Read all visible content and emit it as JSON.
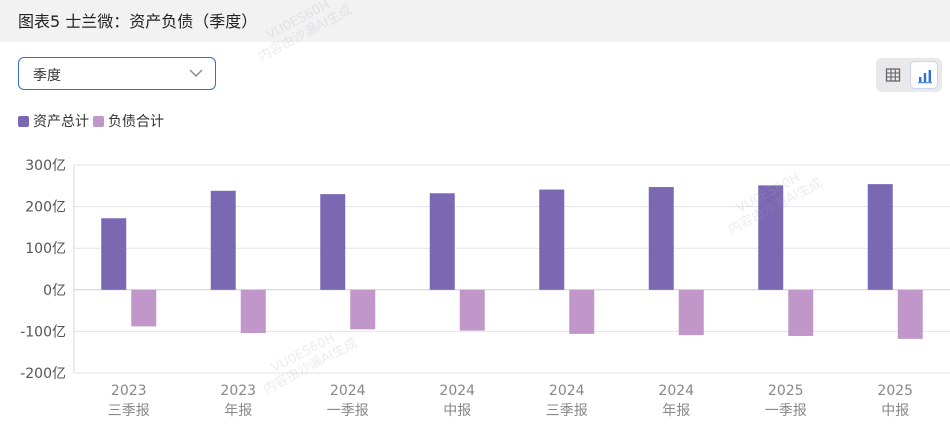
{
  "header": {
    "title": "图表5 士兰微：资产负债（季度）"
  },
  "period_select": {
    "value": "季度"
  },
  "view_toggle": {
    "table_icon": "table-icon",
    "chart_icon": "bar-chart-icon",
    "active": "chart"
  },
  "watermark": {
    "line1": "VU0ES60H",
    "line2": "内容由沙漏AI生成"
  },
  "chart_data": {
    "type": "bar",
    "categories": [
      [
        "2023",
        "三季报"
      ],
      [
        "2023",
        "年报"
      ],
      [
        "2024",
        "一季报"
      ],
      [
        "2024",
        "中报"
      ],
      [
        "2024",
        "三季报"
      ],
      [
        "2024",
        "年报"
      ],
      [
        "2025",
        "一季报"
      ],
      [
        "2025",
        "中报"
      ]
    ],
    "series": [
      {
        "name": "资产总计",
        "color": "#7a68b3",
        "values": [
          172,
          238,
          230,
          232,
          241,
          247,
          251,
          254
        ]
      },
      {
        "name": "负债合计",
        "color": "#c197c9",
        "values": [
          -88,
          -104,
          -95,
          -98,
          -106,
          -109,
          -111,
          -118
        ]
      }
    ],
    "y_ticks": [
      300,
      200,
      100,
      0,
      -100,
      -200
    ],
    "y_tick_labels": [
      "300亿",
      "200亿",
      "100亿",
      "0亿",
      "-100亿",
      "-200亿"
    ],
    "ylim": [
      -200,
      300
    ],
    "grid": true,
    "legend_position": "top-left"
  }
}
